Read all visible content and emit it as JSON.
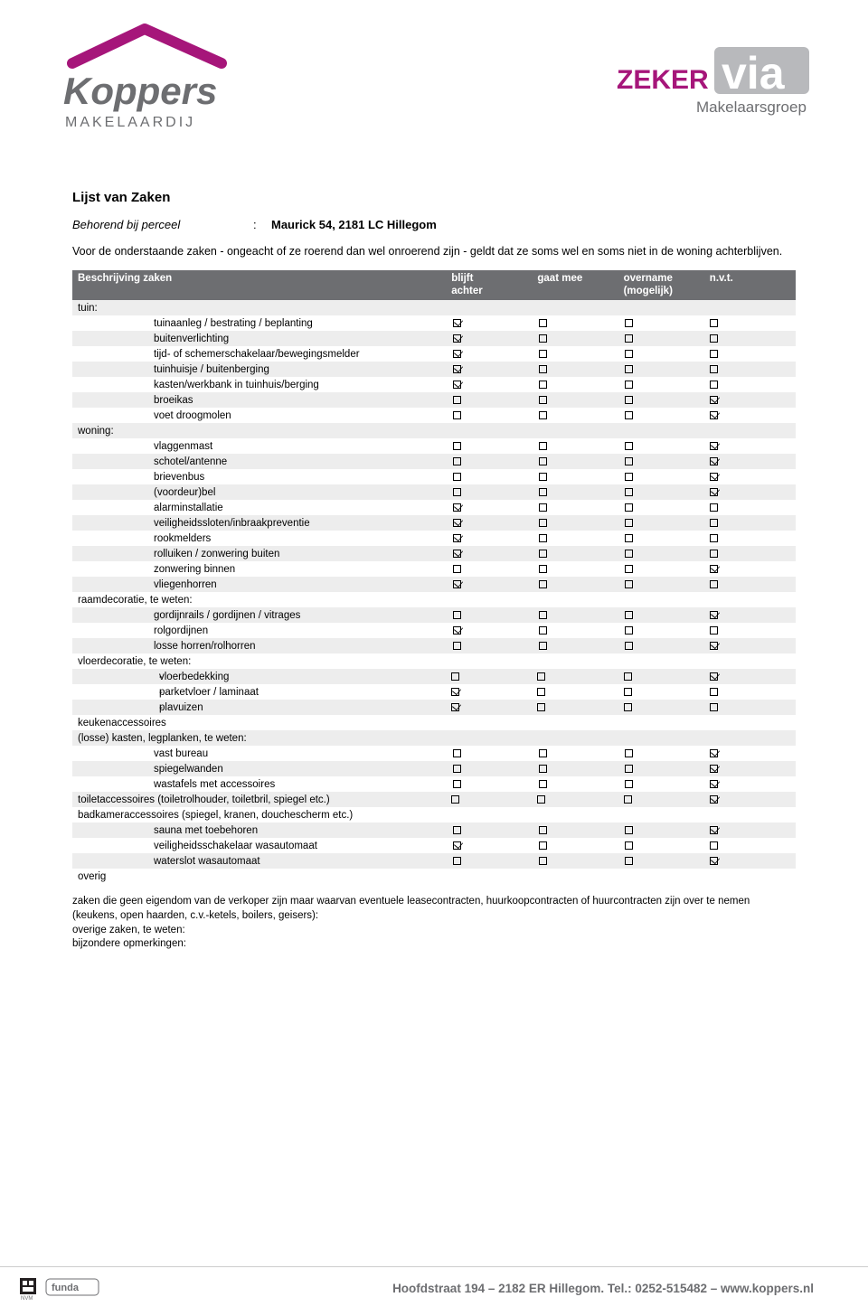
{
  "colors": {
    "header_bg": "#6d6e71",
    "header_text": "#ffffff",
    "row_alt": "#ededed",
    "brand_magenta": "#a6167a",
    "brand_grey": "#6d6e71",
    "via_grey": "#b8b9bc"
  },
  "title": "Lijst van Zaken",
  "subtitle_label": "Behorend bij perceel",
  "subtitle_value": "Maurick 54, 2181 LC Hillegom",
  "intro": "Voor de onderstaande zaken - ongeacht of ze roerend dan wel onroerend zijn - geldt dat ze soms wel en soms niet in de woning achterblijven.",
  "columns": {
    "desc": "Beschrijving zaken",
    "c1": "blijft\nachter",
    "c2": "gaat mee",
    "c3": "overname\n(mogelijk)",
    "c4": "n.v.t."
  },
  "rows": [
    {
      "type": "cat",
      "label": "tuin:"
    },
    {
      "type": "item",
      "label": "tuinaanleg / bestrating / beplanting",
      "v": [
        1,
        0,
        0,
        0
      ]
    },
    {
      "type": "item",
      "label": "buitenverlichting",
      "v": [
        1,
        0,
        0,
        0
      ]
    },
    {
      "type": "item",
      "label": "tijd- of schemerschakelaar/bewegingsmelder",
      "v": [
        1,
        0,
        0,
        0
      ]
    },
    {
      "type": "item",
      "label": "tuinhuisje / buitenberging",
      "v": [
        1,
        0,
        0,
        0
      ]
    },
    {
      "type": "item",
      "label": "kasten/werkbank in tuinhuis/berging",
      "v": [
        1,
        0,
        0,
        0
      ]
    },
    {
      "type": "item",
      "label": "broeikas",
      "v": [
        0,
        0,
        0,
        1
      ]
    },
    {
      "type": "item",
      "label": "voet droogmolen",
      "v": [
        0,
        0,
        0,
        1
      ]
    },
    {
      "type": "cat",
      "label": "woning:"
    },
    {
      "type": "item",
      "label": "vlaggenmast",
      "v": [
        0,
        0,
        0,
        1
      ]
    },
    {
      "type": "item",
      "label": "schotel/antenne",
      "v": [
        0,
        0,
        0,
        1
      ]
    },
    {
      "type": "item",
      "label": "brievenbus",
      "v": [
        0,
        0,
        0,
        1
      ]
    },
    {
      "type": "item",
      "label": "(voordeur)bel",
      "v": [
        0,
        0,
        0,
        1
      ]
    },
    {
      "type": "item",
      "label": "alarminstallatie",
      "v": [
        1,
        0,
        0,
        0
      ]
    },
    {
      "type": "item",
      "label": "veiligheidssloten/inbraakpreventie",
      "v": [
        1,
        0,
        0,
        0
      ]
    },
    {
      "type": "item",
      "label": "rookmelders",
      "v": [
        1,
        0,
        0,
        0
      ]
    },
    {
      "type": "item",
      "label": "rolluiken / zonwering buiten",
      "v": [
        1,
        0,
        0,
        0
      ]
    },
    {
      "type": "item",
      "label": "zonwering binnen",
      "v": [
        0,
        0,
        0,
        1
      ]
    },
    {
      "type": "item",
      "label": "vliegenhorren",
      "v": [
        1,
        0,
        0,
        0
      ]
    },
    {
      "type": "cat",
      "label": "raamdecoratie, te weten:"
    },
    {
      "type": "item",
      "label": "gordijnrails / gordijnen / vitrages",
      "v": [
        0,
        0,
        0,
        1
      ]
    },
    {
      "type": "item",
      "label": "rolgordijnen",
      "v": [
        1,
        0,
        0,
        0
      ]
    },
    {
      "type": "item",
      "label": "losse horren/rolhorren",
      "v": [
        0,
        0,
        0,
        1
      ]
    },
    {
      "type": "cat",
      "label": "vloerdecoratie, te weten:"
    },
    {
      "type": "subitem",
      "dash": "-",
      "label": "vloerbedekking",
      "v": [
        0,
        0,
        0,
        1
      ]
    },
    {
      "type": "subitem",
      "dash": "-",
      "label": "parketvloer / laminaat",
      "v": [
        1,
        0,
        0,
        0
      ]
    },
    {
      "type": "subitem",
      "dash": "-",
      "label": "plavuizen",
      "v": [
        1,
        0,
        0,
        0
      ]
    },
    {
      "type": "cat",
      "label": "keukenaccessoires"
    },
    {
      "type": "cat",
      "label": "(losse) kasten, legplanken, te weten:"
    },
    {
      "type": "item",
      "label": "vast bureau",
      "v": [
        0,
        0,
        0,
        1
      ]
    },
    {
      "type": "item",
      "label": "spiegelwanden",
      "v": [
        0,
        0,
        0,
        1
      ]
    },
    {
      "type": "item",
      "label": "wastafels met accessoires",
      "v": [
        0,
        0,
        0,
        1
      ]
    },
    {
      "type": "full",
      "label": "toiletaccessoires (toiletrolhouder, toiletbril, spiegel etc.)",
      "v": [
        0,
        0,
        0,
        1
      ]
    },
    {
      "type": "full",
      "label": "badkameraccessoires (spiegel, kranen, douchescherm etc.)"
    },
    {
      "type": "item",
      "label": "sauna met toebehoren",
      "v": [
        0,
        0,
        0,
        1
      ]
    },
    {
      "type": "item",
      "label": "veiligheidsschakelaar wasautomaat",
      "v": [
        1,
        0,
        0,
        0
      ]
    },
    {
      "type": "item",
      "label": "waterslot wasautomaat",
      "v": [
        0,
        0,
        0,
        1
      ]
    },
    {
      "type": "cat",
      "label": "overig"
    }
  ],
  "footnotes": [
    "zaken die geen eigendom van de verkoper zijn maar waarvan eventuele leasecontracten, huurkoopcontracten of huurcontracten zijn over te nemen (keukens, open haarden, c.v.-ketels, boilers, geisers):",
    "overige zaken, te weten:",
    "bijzondere opmerkingen:"
  ],
  "footer": "Hoofdstraat 194 – 2182 ER  Hillegom. Tel.: 0252-515482 – www.koppers.nl",
  "logos": {
    "left_name": "Koppers",
    "left_sub": "M A K E L A A R D I J",
    "right_pre": "ZEKER",
    "right_main": "Via",
    "right_sub": "Makelaarsgroep"
  }
}
